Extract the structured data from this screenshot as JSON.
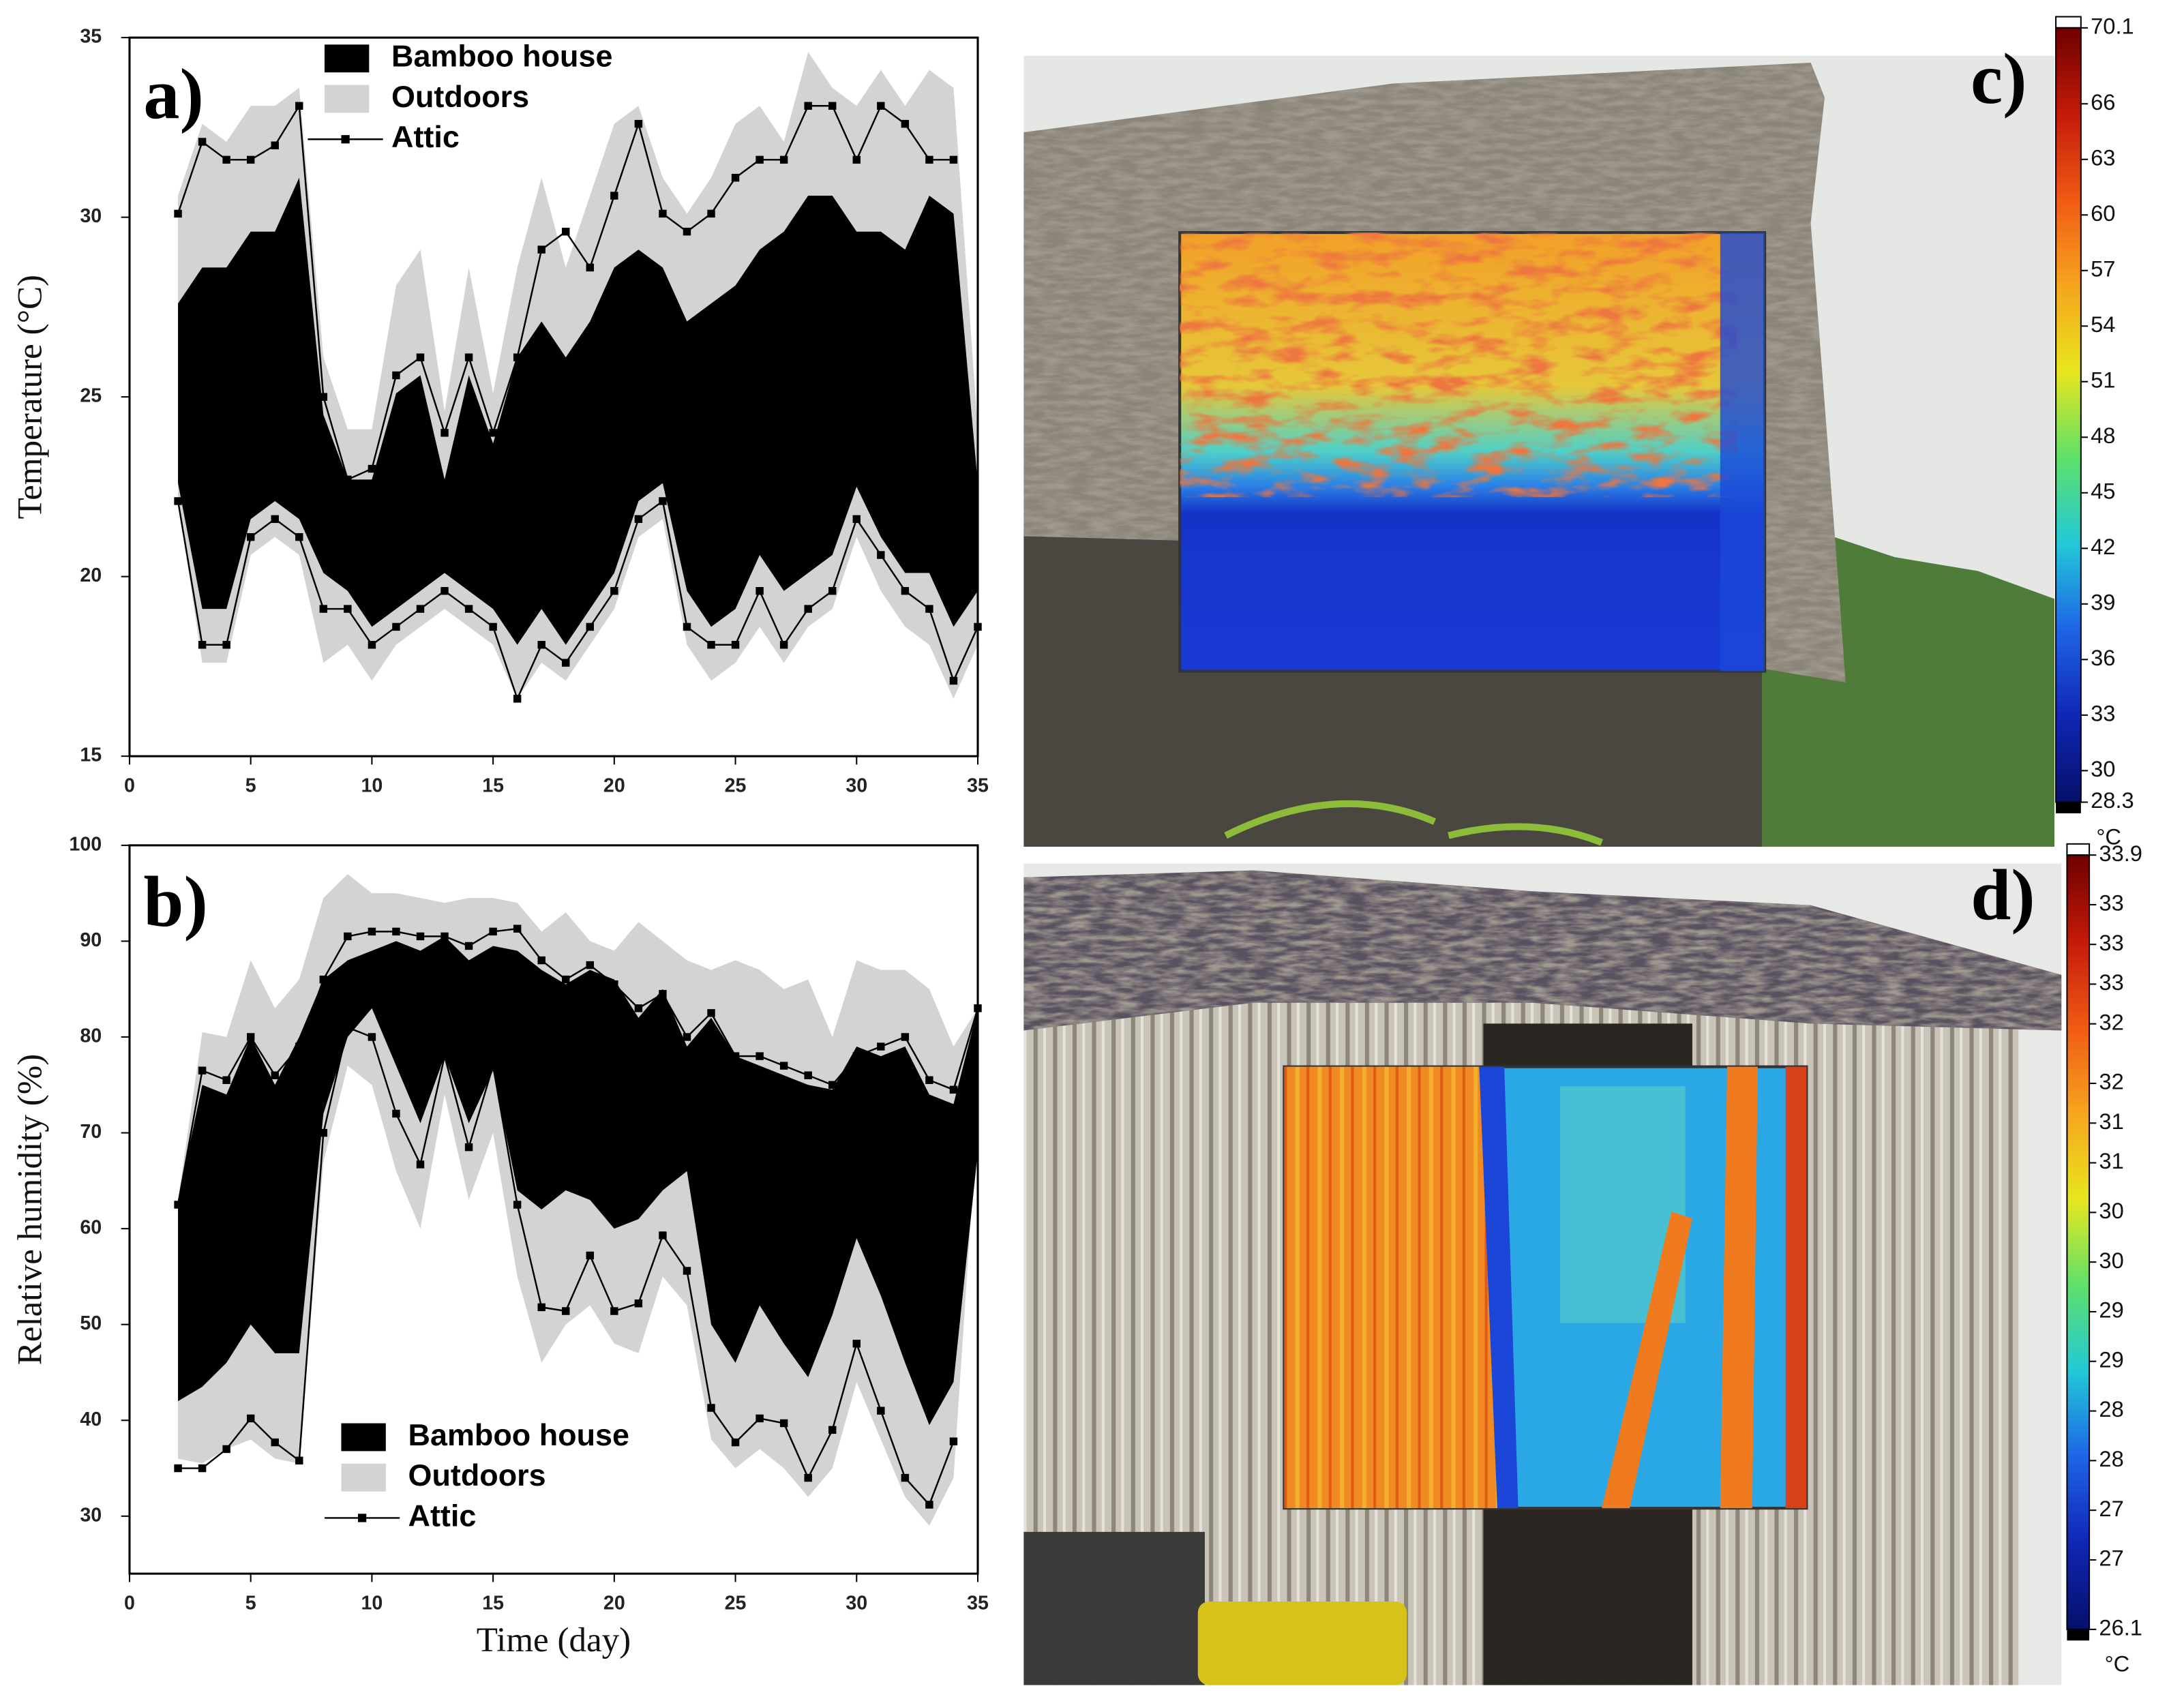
{
  "chart_data": [
    {
      "type": "range_area",
      "label": "a)",
      "ylabel": "Temperature (°C)",
      "x": [
        2,
        3,
        4,
        5,
        6,
        7,
        8,
        9,
        10,
        11,
        12,
        13,
        14,
        15,
        16,
        17,
        18,
        19,
        20,
        21,
        22,
        23,
        24,
        25,
        26,
        27,
        28,
        29,
        30,
        31,
        32,
        33,
        34,
        35
      ],
      "xlim": [
        0,
        35
      ],
      "xticks": [
        0,
        5,
        10,
        15,
        20,
        25,
        30,
        35
      ],
      "ylim": [
        15,
        35
      ],
      "yticks": [
        15,
        20,
        25,
        30,
        35
      ],
      "legend": "top",
      "series": [
        {
          "name": "Bamboo house",
          "color": "#000000",
          "kind": "band",
          "max": [
            27.6,
            28.6,
            28.6,
            29.6,
            29.6,
            31.1,
            24.5,
            22.7,
            22.7,
            25.1,
            25.6,
            22.7,
            25.6,
            23.7,
            26.1,
            27.1,
            26.1,
            27.1,
            28.6,
            29.1,
            28.6,
            27.1,
            27.6,
            28.1,
            29.1,
            29.6,
            30.6,
            30.6,
            29.6,
            29.6,
            29.1,
            30.6,
            30.1,
            22.6
          ],
          "min": [
            22.6,
            19.1,
            19.1,
            21.6,
            22.1,
            21.6,
            20.1,
            19.6,
            18.6,
            19.1,
            19.6,
            20.1,
            19.6,
            19.1,
            18.1,
            19.1,
            18.1,
            19.1,
            20.1,
            22.1,
            22.6,
            19.6,
            18.6,
            19.1,
            20.6,
            19.6,
            20.1,
            20.6,
            22.5,
            21.1,
            20.1,
            20.1,
            18.6,
            19.6
          ]
        },
        {
          "name": "Outdoors",
          "color": "#d3d3d3",
          "kind": "band",
          "max": [
            30.6,
            32.6,
            32.1,
            33.1,
            33.1,
            33.6,
            26.1,
            24.1,
            24.1,
            28.1,
            29.1,
            24.6,
            28.6,
            25.1,
            28.6,
            31.1,
            28.6,
            30.6,
            32.6,
            33.1,
            31.1,
            30.1,
            31.1,
            32.6,
            33.1,
            32.1,
            34.6,
            33.6,
            33.1,
            34.1,
            33.1,
            34.1,
            33.6,
            24.1
          ],
          "min": [
            22.1,
            17.6,
            17.6,
            20.6,
            21.1,
            20.6,
            17.6,
            18.1,
            17.1,
            18.1,
            18.6,
            19.1,
            18.6,
            18.1,
            16.6,
            17.6,
            17.1,
            18.1,
            19.1,
            21.1,
            21.6,
            18.1,
            17.1,
            17.6,
            18.6,
            17.6,
            18.6,
            19.1,
            21.1,
            19.6,
            18.6,
            18.1,
            16.6,
            18.1
          ]
        },
        {
          "name": "Attic",
          "color": "#000000",
          "kind": "line",
          "max": [
            30.1,
            32.1,
            31.6,
            31.6,
            32.0,
            33.1,
            25.0,
            22.7,
            23.0,
            25.6,
            26.1,
            24.0,
            26.1,
            24.0,
            26.1,
            29.1,
            29.6,
            28.6,
            30.6,
            32.6,
            30.1,
            29.6,
            30.1,
            31.1,
            31.6,
            31.6,
            33.1,
            33.1,
            31.6,
            33.1,
            32.6,
            31.6,
            31.6,
            null
          ],
          "min": [
            22.1,
            18.1,
            18.1,
            21.1,
            21.6,
            21.1,
            19.1,
            19.1,
            18.1,
            18.6,
            19.1,
            19.6,
            19.1,
            18.6,
            16.6,
            18.1,
            17.6,
            18.6,
            19.6,
            21.6,
            22.1,
            18.6,
            18.1,
            18.1,
            19.6,
            18.1,
            19.1,
            19.6,
            21.6,
            20.6,
            19.6,
            19.1,
            17.1,
            18.6
          ]
        }
      ]
    },
    {
      "type": "range_area",
      "label": "b)",
      "ylabel": "Relative humidity (%)",
      "xlabel": "Time (day)",
      "x": [
        2,
        3,
        4,
        5,
        6,
        7,
        8,
        9,
        10,
        11,
        12,
        13,
        14,
        15,
        16,
        17,
        18,
        19,
        20,
        21,
        22,
        23,
        24,
        25,
        26,
        27,
        28,
        29,
        30,
        31,
        32,
        33,
        34,
        35
      ],
      "xlim": [
        0,
        35
      ],
      "xticks": [
        0,
        5,
        10,
        15,
        20,
        25,
        30,
        35
      ],
      "ylim": [
        24,
        100
      ],
      "yticks": [
        30,
        40,
        50,
        60,
        70,
        80,
        90,
        100
      ],
      "legend": "bottom",
      "series": [
        {
          "name": "Bamboo house",
          "color": "#000000",
          "kind": "band",
          "max": [
            63,
            75,
            74,
            80,
            75,
            80,
            86,
            88,
            89,
            90,
            89,
            90.5,
            88,
            89.5,
            89,
            87,
            85.5,
            87,
            86,
            82,
            85,
            79,
            82,
            78,
            77,
            76,
            75,
            74.5,
            79,
            78,
            79,
            74,
            73,
            83
          ],
          "min": [
            42,
            43.5,
            46,
            50,
            47,
            47,
            72,
            80,
            83,
            77,
            71,
            78,
            71,
            76.5,
            64,
            62,
            64,
            63,
            60,
            61,
            64,
            66,
            50,
            46,
            52,
            48,
            44.5,
            51,
            59,
            53,
            46,
            39.5,
            44,
            68
          ]
        },
        {
          "name": "Outdoors",
          "color": "#d3d3d3",
          "kind": "band",
          "max": [
            63,
            80.5,
            80,
            88,
            83,
            86,
            94.5,
            97,
            95,
            95,
            94.5,
            94,
            94.5,
            94.5,
            94,
            91,
            93,
            90,
            89,
            92,
            90,
            88,
            87,
            88,
            87,
            85,
            86,
            80,
            88,
            87,
            87,
            85,
            79,
            83
          ],
          "min": [
            36,
            35.5,
            37,
            38,
            36,
            35.5,
            67,
            77,
            75,
            66,
            60,
            74,
            63,
            70,
            55,
            46,
            50,
            52,
            48,
            47,
            55,
            52,
            38,
            35,
            37,
            35,
            32,
            35,
            44,
            38,
            32,
            29,
            34,
            72
          ]
        },
        {
          "name": "Attic",
          "color": "#000000",
          "kind": "line",
          "max": [
            62.5,
            76.5,
            75.5,
            80,
            76,
            79,
            86,
            90.5,
            91,
            91,
            90.5,
            90.5,
            89.5,
            91,
            91.3,
            88,
            86,
            87.5,
            85.5,
            83,
            84.5,
            80,
            82.5,
            78,
            78,
            77,
            76,
            75,
            78,
            79,
            80,
            75.5,
            74.5,
            83
          ],
          "min": [
            35,
            35,
            37,
            40.2,
            37.7,
            35.8,
            70,
            81,
            80,
            72,
            66.7,
            78,
            68.5,
            77,
            62.5,
            51.8,
            51.4,
            57.2,
            51.4,
            52.2,
            59.3,
            55.6,
            41.3,
            37.7,
            40.2,
            39.7,
            34,
            39,
            48,
            41,
            34,
            31.2,
            37.8,
            null
          ]
        }
      ]
    },
    {
      "type": "colorbar",
      "label": "c)",
      "unit": "°C",
      "ylim": [
        28.3,
        70.1
      ],
      "yticks": [
        70.1,
        66,
        63,
        60,
        57,
        54,
        51,
        48,
        45,
        42,
        39,
        36,
        33,
        30,
        28.3
      ],
      "colors": [
        "#6e0000",
        "#c41a0a",
        "#f05a14",
        "#f6a51e",
        "#e8e61e",
        "#5ee06a",
        "#22c8d8",
        "#1e64e6",
        "#1026b4",
        "#06106a"
      ]
    },
    {
      "type": "colorbar",
      "label": "d)",
      "unit": "°C",
      "ylim": [
        26.1,
        33.9
      ],
      "yticks": [
        33.9,
        {
          "value": 33.4,
          "label": "33"
        },
        {
          "value": 33.0,
          "label": "33"
        },
        {
          "value": 32.6,
          "label": "33"
        },
        {
          "value": 32.2,
          "label": "32"
        },
        {
          "value": 31.6,
          "label": "32"
        },
        {
          "value": 31.2,
          "label": "31"
        },
        {
          "value": 30.8,
          "label": "31"
        },
        {
          "value": 30.3,
          "label": "30"
        },
        {
          "value": 29.8,
          "label": "30"
        },
        {
          "value": 29.3,
          "label": "29"
        },
        {
          "value": 28.8,
          "label": "29"
        },
        {
          "value": 28.3,
          "label": "28"
        },
        {
          "value": 27.8,
          "label": "28"
        },
        {
          "value": 27.3,
          "label": "27"
        },
        {
          "value": 26.8,
          "label": "27"
        },
        26.1
      ],
      "colors": [
        "#6e0000",
        "#c41a0a",
        "#f05a14",
        "#f6a51e",
        "#e8e61e",
        "#5ee06a",
        "#22c8d8",
        "#1e64e6",
        "#1026b4",
        "#06106a"
      ]
    }
  ]
}
